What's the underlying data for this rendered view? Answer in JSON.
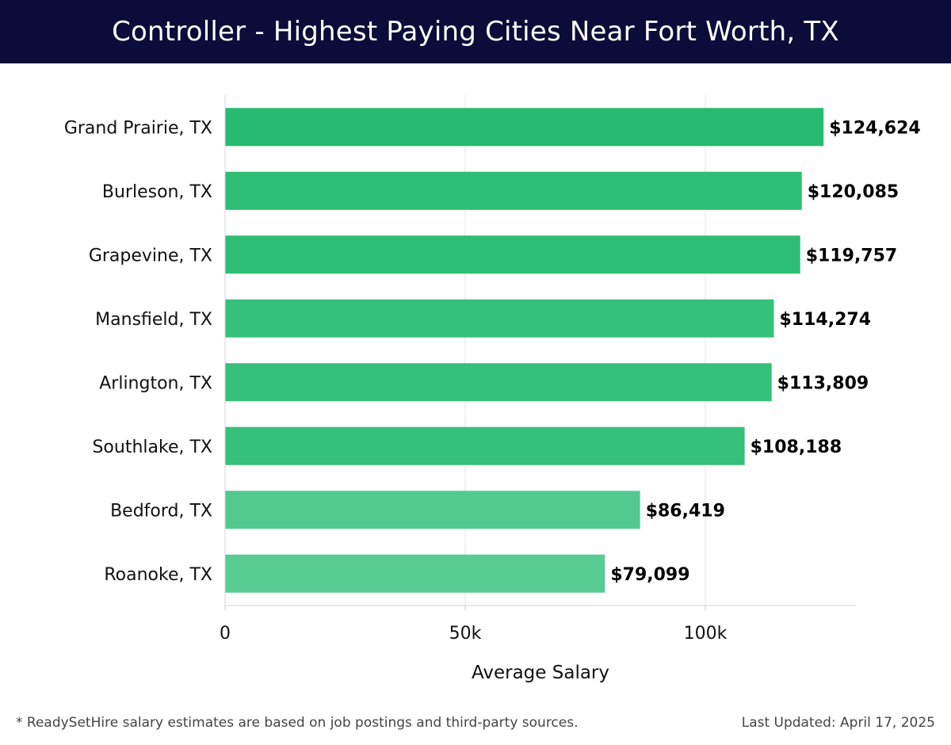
{
  "header": {
    "title": "Controller - Highest Paying Cities Near Fort Worth, TX"
  },
  "chart_data": {
    "type": "bar",
    "orientation": "horizontal",
    "title": "Controller - Highest Paying Cities Near Fort Worth, TX",
    "xlabel": "Average Salary",
    "ylabel": "",
    "xlim": [
      0,
      131000
    ],
    "xticks": [
      0,
      50000,
      100000
    ],
    "xtick_labels": [
      "0",
      "50k",
      "100k"
    ],
    "grid": true,
    "categories": [
      "Grand Prairie, TX",
      "Burleson, TX",
      "Grapevine, TX",
      "Mansfield, TX",
      "Arlington, TX",
      "Southlake, TX",
      "Bedford, TX",
      "Roanoke, TX"
    ],
    "values": [
      124624,
      120085,
      119757,
      114274,
      113809,
      108188,
      86419,
      79099
    ],
    "value_labels": [
      "$124,624",
      "$120,085",
      "$119,757",
      "$114,274",
      "$113,809",
      "$108,188",
      "$86,419",
      "$79,099"
    ],
    "colors": [
      "#27bb6f",
      "#2ebe73",
      "#2ebe73",
      "#35c17a",
      "#35c17a",
      "#35c17a",
      "#52ca8f",
      "#58cc93"
    ]
  },
  "footer": {
    "note": "* ReadySetHire salary estimates are based on job postings and third-party sources.",
    "updated": "Last Updated: April 17, 2025"
  }
}
